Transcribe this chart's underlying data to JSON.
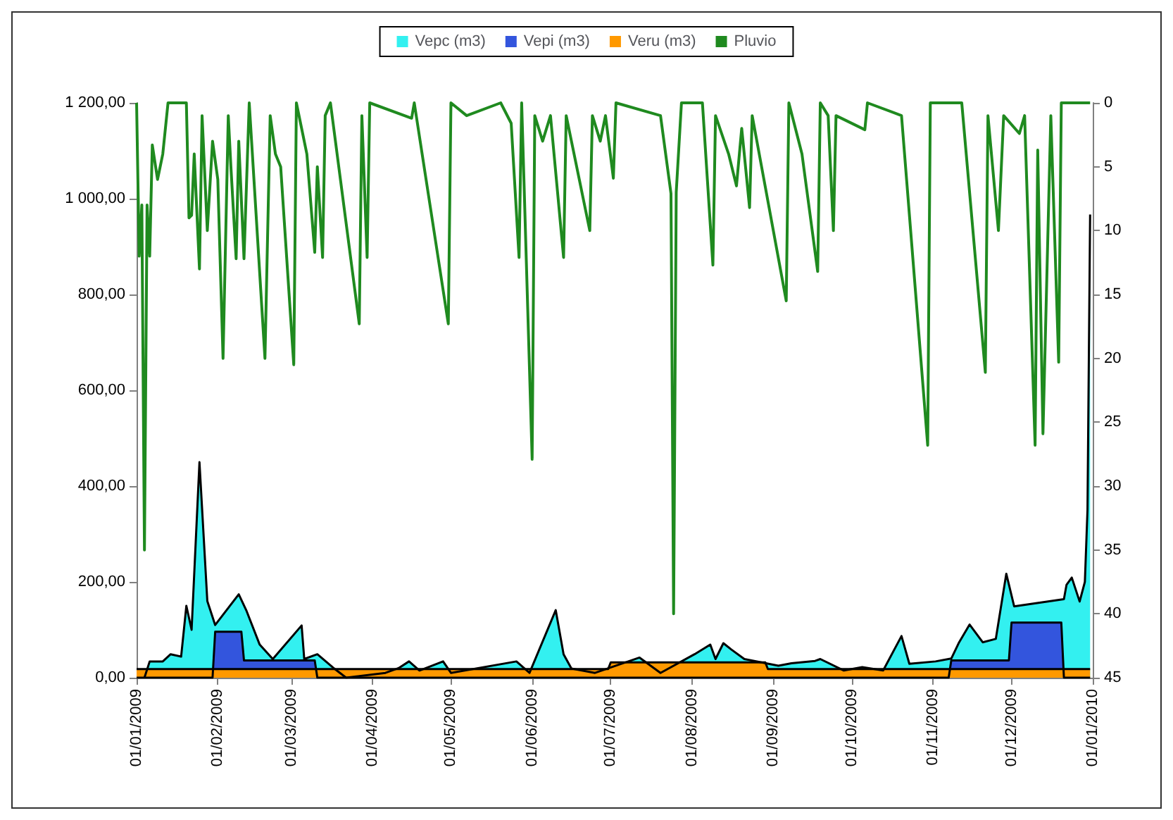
{
  "chart_data": {
    "type": "area",
    "legend": "top",
    "grid": false,
    "marker": "none",
    "xlim": [
      "2009-01-01",
      "2010-01-01"
    ],
    "xticks": [
      {
        "value": "2009-01-01",
        "label": "01/01/2009"
      },
      {
        "value": "2009-02-01",
        "label": "01/02/2009"
      },
      {
        "value": "2009-03-01",
        "label": "01/03/2009"
      },
      {
        "value": "2009-04-01",
        "label": "01/04/2009"
      },
      {
        "value": "2009-05-01",
        "label": "01/05/2009"
      },
      {
        "value": "2009-06-01",
        "label": "01/06/2009"
      },
      {
        "value": "2009-07-01",
        "label": "01/07/2009"
      },
      {
        "value": "2009-08-01",
        "label": "01/08/2009"
      },
      {
        "value": "2009-09-01",
        "label": "01/09/2009"
      },
      {
        "value": "2009-10-01",
        "label": "01/10/2009"
      },
      {
        "value": "2009-11-01",
        "label": "01/11/2009"
      },
      {
        "value": "2009-12-01",
        "label": "01/12/2009"
      },
      {
        "value": "2010-01-01",
        "label": "01/01/2010"
      }
    ],
    "ylim": [
      0,
      1200
    ],
    "yticks": [
      {
        "value": 0,
        "label": "0,00"
      },
      {
        "value": 200,
        "label": "200,00"
      },
      {
        "value": 400,
        "label": "400,00"
      },
      {
        "value": 600,
        "label": "600,00"
      },
      {
        "value": 800,
        "label": "800,00"
      },
      {
        "value": 1000,
        "label": "1 000,00"
      },
      {
        "value": 1200,
        "label": "1 200,00"
      }
    ],
    "y2lim": [
      45,
      0
    ],
    "y2ticks": [
      0,
      5,
      10,
      15,
      20,
      25,
      30,
      35,
      40,
      45
    ],
    "series": [
      {
        "name": "Vepc (m3)",
        "color": "#33f0f0",
        "x": [
          "2009-01-04",
          "2009-01-06",
          "2009-01-11",
          "2009-01-14",
          "2009-01-18",
          "2009-01-20",
          "2009-01-22",
          "2009-01-25",
          "2009-01-28",
          "2009-01-31",
          "2009-02-04",
          "2009-02-09",
          "2009-02-12",
          "2009-02-17",
          "2009-02-22",
          "2009-02-28",
          "2009-03-05",
          "2009-03-06",
          "2009-03-11",
          "2009-03-17",
          "2009-03-22",
          "2009-04-06",
          "2009-04-11",
          "2009-04-15",
          "2009-04-19",
          "2009-04-28",
          "2009-05-01",
          "2009-05-26",
          "2009-05-31",
          "2009-06-10",
          "2009-06-13",
          "2009-06-16",
          "2009-06-25",
          "2009-07-12",
          "2009-07-20",
          "2009-08-02",
          "2009-08-08",
          "2009-08-10",
          "2009-08-13",
          "2009-08-16",
          "2009-08-21",
          "2009-09-03",
          "2009-09-08",
          "2009-09-17",
          "2009-09-19",
          "2009-09-28",
          "2009-10-05",
          "2009-10-13",
          "2009-10-20",
          "2009-10-23",
          "2009-11-02",
          "2009-11-08",
          "2009-11-11",
          "2009-11-15",
          "2009-11-20",
          "2009-11-25",
          "2009-11-29",
          "2009-12-02",
          "2009-12-07",
          "2009-12-21",
          "2009-12-22",
          "2009-12-24",
          "2009-12-27",
          "2009-12-29",
          "2009-12-30",
          "2009-12-31"
        ],
        "values": [
          0,
          34,
          34,
          49,
          44,
          150,
          100,
          450,
          160,
          110,
          null,
          174,
          139,
          69,
          39,
          null,
          109,
          39,
          49,
          21,
          0,
          10,
          20,
          34,
          15,
          34,
          10,
          34,
          10,
          141,
          49,
          19,
          10,
          42,
          10,
          49,
          69,
          39,
          72,
          59,
          39,
          25,
          30,
          35,
          39,
          15,
          22,
          15,
          87,
          29,
          34,
          40,
          74,
          111,
          74,
          81,
          217,
          149,
          null,
          164,
          194,
          209,
          159,
          200,
          350,
          967
        ]
      },
      {
        "name": "Vepi (m3)",
        "color": "#3355dd",
        "x": [
          "2009-01-01",
          "2009-01-30",
          "2009-01-31",
          "2009-02-10",
          "2009-02-11",
          "2009-03-10",
          "2009-03-11",
          "2009-11-07",
          "2009-11-08",
          "2009-11-30",
          "2009-12-01",
          "2009-12-20",
          "2009-12-21",
          "2009-12-31"
        ],
        "values": [
          0,
          0,
          96,
          96,
          36,
          36,
          0,
          0,
          36,
          36,
          115,
          115,
          0,
          0
        ]
      },
      {
        "name": "Veru (m3)",
        "color": "#ff9900",
        "x": [
          "2009-01-01",
          "2009-06-30",
          "2009-07-01",
          "2009-08-29",
          "2009-08-30",
          "2009-12-31"
        ],
        "values": [
          18,
          18,
          32,
          32,
          18,
          18
        ]
      },
      {
        "name": "Pluvio",
        "type": "line",
        "axis": "y2",
        "color": "#1f8a1f",
        "x": [
          "2009-01-01",
          "2009-01-02",
          "2009-01-03",
          "2009-01-04",
          "2009-01-05",
          "2009-01-06",
          "2009-01-07",
          "2009-01-09",
          "2009-01-11",
          "2009-01-13",
          "2009-01-20",
          "2009-01-21",
          "2009-01-22",
          "2009-01-23",
          "2009-01-25",
          "2009-01-26",
          "2009-01-28",
          "2009-01-30",
          "2009-02-01",
          "2009-02-03",
          "2009-02-05",
          "2009-02-06",
          "2009-02-08",
          "2009-02-09",
          "2009-02-11",
          "2009-02-13",
          "2009-02-19",
          "2009-02-21",
          "2009-02-23",
          "2009-02-25",
          "2009-03-02",
          "2009-03-03",
          "2009-03-07",
          "2009-03-10",
          "2009-03-11",
          "2009-03-13",
          "2009-03-14",
          "2009-03-16",
          "2009-03-27",
          "2009-03-28",
          "2009-03-30",
          "2009-03-31",
          "2009-04-16",
          "2009-04-17",
          "2009-04-30",
          "2009-05-01",
          "2009-05-07",
          "2009-05-20",
          "2009-05-24",
          "2009-05-27",
          "2009-05-28",
          "2009-06-01",
          "2009-06-02",
          "2009-06-05",
          "2009-06-08",
          "2009-06-13",
          "2009-06-14",
          "2009-06-23",
          "2009-06-24",
          "2009-06-27",
          "2009-06-29",
          "2009-07-02",
          "2009-07-03",
          "2009-07-20",
          "2009-07-24",
          "2009-07-25",
          "2009-07-26",
          "2009-07-28",
          "2009-08-05",
          "2009-08-09",
          "2009-08-10",
          "2009-08-15",
          "2009-08-18",
          "2009-08-20",
          "2009-08-23",
          "2009-08-24",
          "2009-09-06",
          "2009-09-07",
          "2009-09-12",
          "2009-09-18",
          "2009-09-19",
          "2009-09-22",
          "2009-09-24",
          "2009-09-25",
          "2009-10-06",
          "2009-10-07",
          "2009-10-20",
          "2009-10-30",
          "2009-10-31",
          "2009-11-12",
          "2009-11-21",
          "2009-11-22",
          "2009-11-26",
          "2009-11-28",
          "2009-12-04",
          "2009-12-06",
          "2009-12-10",
          "2009-12-11",
          "2009-12-13",
          "2009-12-16",
          "2009-12-19",
          "2009-12-20",
          "2009-12-31"
        ],
        "values": [
          0,
          12,
          8,
          35,
          8,
          12,
          3.3,
          6,
          4,
          0,
          0,
          9,
          8.8,
          4,
          13,
          1,
          10,
          3,
          6,
          20,
          1,
          5,
          12.2,
          3,
          12.2,
          0,
          20,
          1,
          4,
          5,
          20.5,
          0,
          4,
          11.7,
          5,
          12.1,
          1,
          0,
          17.3,
          1,
          12.1,
          0,
          1.2,
          0,
          17.3,
          0,
          1,
          0,
          1.6,
          12.1,
          0,
          27.9,
          1,
          3,
          1,
          12.1,
          1,
          10,
          1,
          3,
          1,
          5.9,
          0,
          1,
          7.1,
          40,
          7,
          0,
          0,
          12.7,
          1,
          4,
          6.5,
          2,
          8.2,
          1,
          15.5,
          0,
          4,
          13.2,
          0,
          1,
          10,
          1,
          2.1,
          0,
          1,
          26.8,
          0,
          0,
          21.1,
          1,
          10,
          1,
          2.4,
          1,
          26.8,
          3.7,
          25.9,
          1,
          20.3,
          0,
          0
        ]
      }
    ]
  }
}
